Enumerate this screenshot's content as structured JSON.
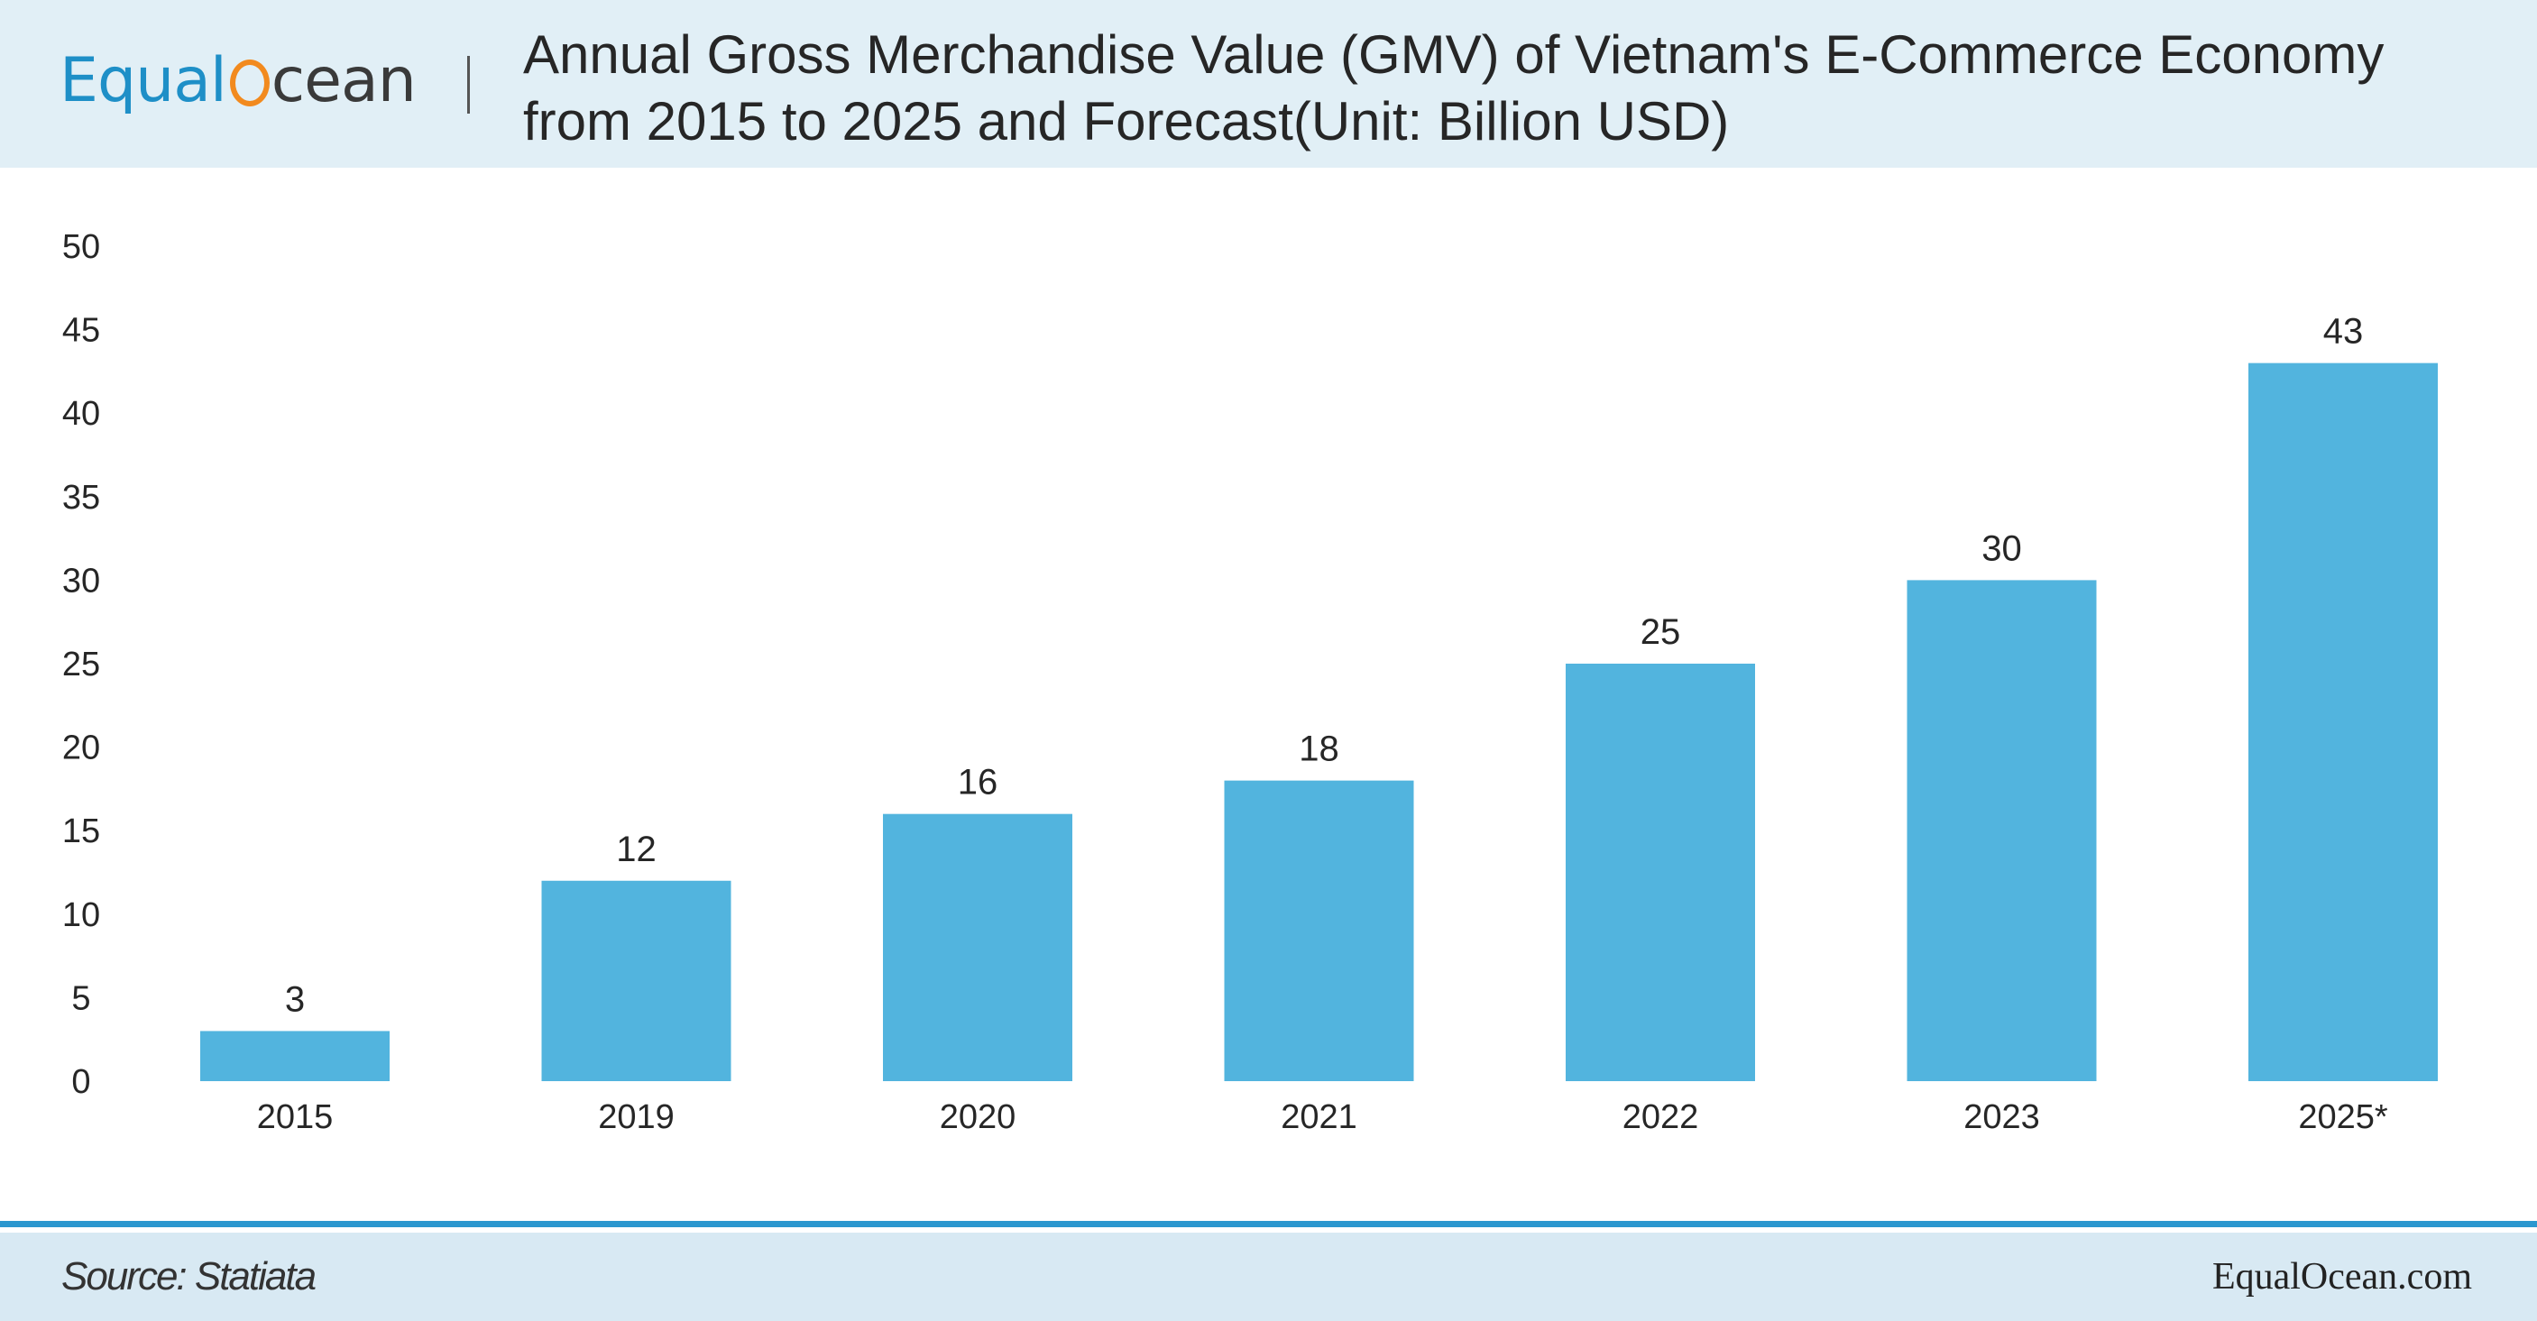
{
  "header": {
    "logo_parts": [
      "Equal",
      "cean"
    ],
    "title_line1": "Annual Gross Merchandise Value (GMV) of Vietnam's E-Commerce Economy",
    "title_line2": "from 2015 to 2025 and Forecast(Unit: Billion USD)"
  },
  "footer": {
    "source": "Source: Statiata",
    "site": "EqualOcean.com"
  },
  "colors": {
    "bar": "#52b4de",
    "header_bg": "#e1eff6",
    "footer_bg": "#d8e9f3",
    "accent_line": "#2b97cf",
    "logo_blue": "#1e8fc7",
    "logo_orange": "#f28a1e"
  },
  "chart_data": {
    "type": "bar",
    "title": "Annual Gross Merchandise Value (GMV) of Vietnam's E-Commerce Economy from 2015 to 2025 and Forecast(Unit: Billion USD)",
    "categories": [
      "2015",
      "2019",
      "2020",
      "2021",
      "2022",
      "2023",
      "2025*"
    ],
    "values": [
      3,
      12,
      16,
      18,
      25,
      30,
      43
    ],
    "ylim": [
      0,
      50
    ],
    "yticks": [
      0,
      5,
      10,
      15,
      20,
      25,
      30,
      35,
      40,
      45,
      50
    ],
    "grid": false,
    "data_labels": true
  }
}
